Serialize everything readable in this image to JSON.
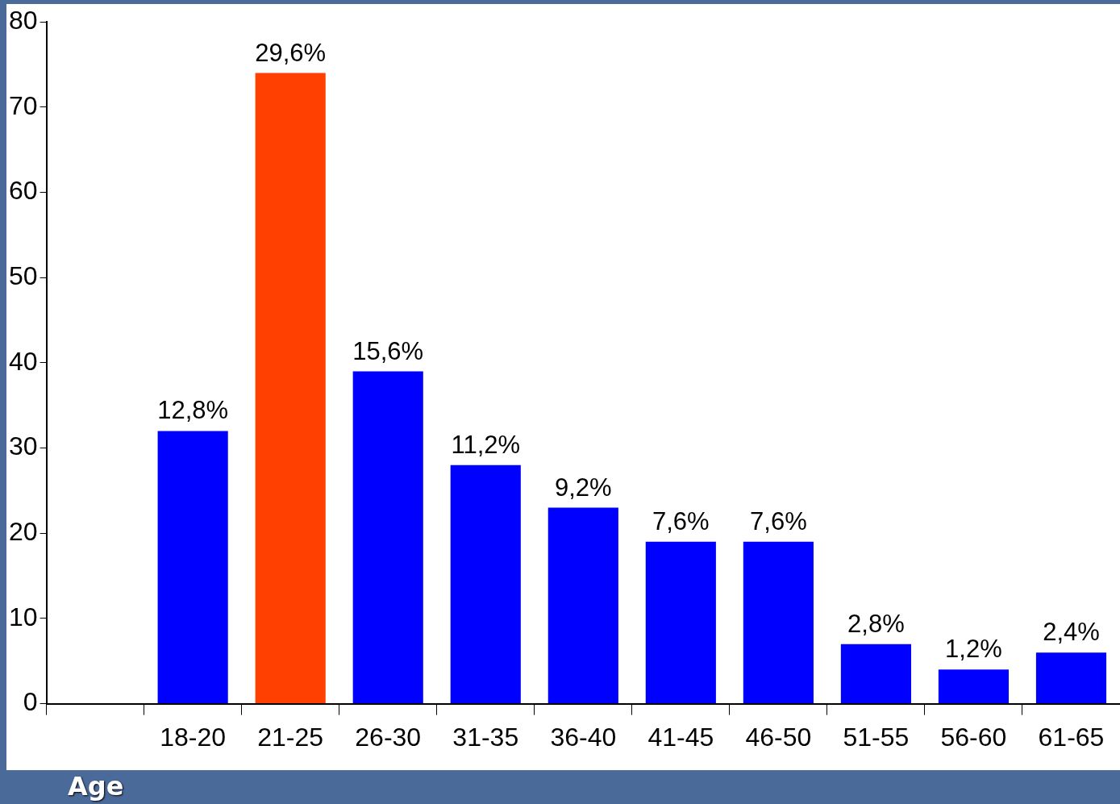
{
  "chart_data": {
    "type": "bar",
    "xlabel": "Age",
    "categories": [
      null,
      "18-20",
      "21-25",
      "26-30",
      "31-35",
      "36-40",
      "41-45",
      "46-50",
      "51-55",
      "56-60",
      "61-65"
    ],
    "values": [
      null,
      32,
      74,
      39,
      28,
      23,
      19,
      19,
      7,
      4,
      6
    ],
    "colors": [
      "#0000ff",
      "#0000ff",
      "#ff4000",
      "#0000ff",
      "#0000ff",
      "#0000ff",
      "#0000ff",
      "#0000ff",
      "#0000ff",
      "#0000ff",
      "#0000ff"
    ],
    "annotations": [
      {
        "text": "12,8%",
        "x": "18-20",
        "y": 32
      },
      {
        "text": "29,6%",
        "x": "21-25",
        "y": 74
      },
      {
        "text": "15,6%",
        "x": "26-30",
        "y": 39
      },
      {
        "text": "11,2%",
        "x": "31-35",
        "y": 28
      },
      {
        "text": "9,2%",
        "x": "36-40",
        "y": 23
      },
      {
        "text": "7,6%",
        "x": "41-45",
        "y": 19
      },
      {
        "text": "7,6%",
        "x": "46-50",
        "y": 19
      },
      {
        "text": "2,8%",
        "x": "51-55",
        "y": 7
      },
      {
        "text": "1,2%",
        "x": "56-60",
        "y": 4
      },
      {
        "text": "2,4%",
        "x": "61-65",
        "y": 6
      }
    ],
    "ylim": [
      0,
      80
    ],
    "yticks": [
      0,
      10,
      20,
      30,
      40,
      50,
      60,
      70,
      80
    ],
    "grid": false,
    "legend": false
  }
}
